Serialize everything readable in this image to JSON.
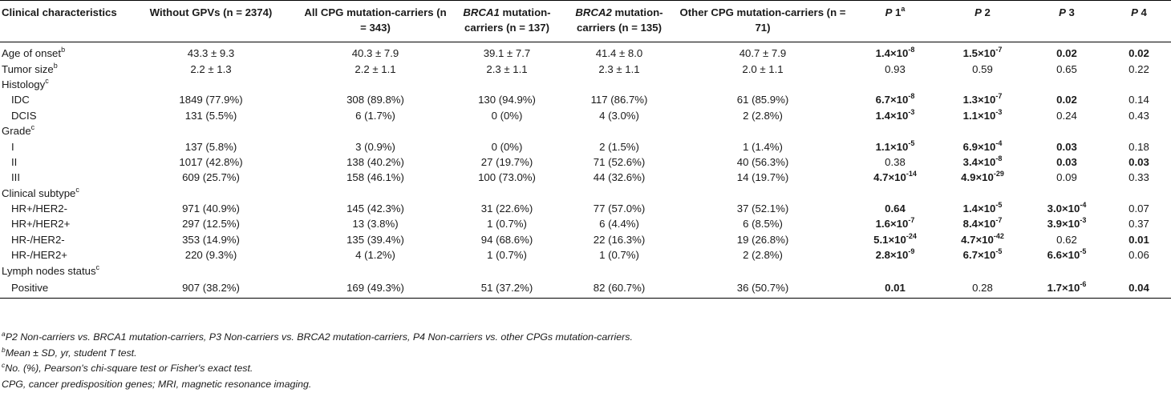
{
  "header": {
    "col0": "Clinical characteristics",
    "col1": "Without GPVs (n = 2374)",
    "col2": "All CPG mutation-carriers (n = 343)",
    "col3_gene": "BRCA1",
    "col3_rest": " mutation-carriers (n = 137)",
    "col4_gene": "BRCA2",
    "col4_rest": " mutation-carriers (n = 135)",
    "col5": "Other CPG mutation-carriers (n = 71)",
    "p": "P",
    "p1": " 1",
    "p1_sup": "a",
    "p2": " 2",
    "p3": " 3",
    "p4": " 4"
  },
  "rows": [
    {
      "label": "Age of onset",
      "sup": "b",
      "c1": "43.3 ± 9.3",
      "c2": "40.3 ± 7.9",
      "c3": "39.1 ± 7.7",
      "c4": "41.4 ± 8.0",
      "c5": "40.7 ± 7.9",
      "p1": "1.4×10",
      "p1e": "-8",
      "p2": "1.5×10",
      "p2e": "-7",
      "p3": "0.02",
      "p3e": "",
      "p4": "0.02",
      "p4e": ""
    },
    {
      "label": "Tumor size",
      "sup": "b",
      "c1": "2.2 ± 1.3",
      "c2": "2.2 ± 1.1",
      "c3": "2.3 ± 1.1",
      "c4": "2.3 ± 1.1",
      "c5": "2.0 ± 1.1",
      "p1": "0.93",
      "p1e": "",
      "p2": "0.59",
      "p2e": "",
      "p3": "0.65",
      "p3e": "",
      "p4": "0.22",
      "p4e": ""
    },
    {
      "label": "Histology",
      "sup": "c"
    },
    {
      "label": "IDC",
      "sub": true,
      "c1": "1849 (77.9%)",
      "c2": "308 (89.8%)",
      "c3": "130 (94.9%)",
      "c4": "117 (86.7%)",
      "c5": "61 (85.9%)",
      "p1": "6.7×10",
      "p1e": "-8",
      "p2": "1.3×10",
      "p2e": "-7",
      "p3": "0.02",
      "p3e": "",
      "p4": "0.14",
      "p4e": ""
    },
    {
      "label": "DCIS",
      "sub": true,
      "c1": "131 (5.5%)",
      "c2": "6 (1.7%)",
      "c3": "0 (0%)",
      "c4": "4 (3.0%)",
      "c5": "2 (2.8%)",
      "p1": "1.4×10",
      "p1e": "-3",
      "p2": "1.1×10",
      "p2e": "-3",
      "p3": "0.24",
      "p3e": "",
      "p4": "0.43",
      "p4e": ""
    },
    {
      "label": "Grade",
      "sup": "c"
    },
    {
      "label": "I",
      "sub": true,
      "c1": "137 (5.8%)",
      "c2": "3 (0.9%)",
      "c3": "0 (0%)",
      "c4": "2 (1.5%)",
      "c5": "1 (1.4%)",
      "p1": "1.1×10",
      "p1e": "-5",
      "p2": "6.9×10",
      "p2e": "-4",
      "p3": "0.03",
      "p3e": "",
      "p4": "0.18",
      "p4e": ""
    },
    {
      "label": "II",
      "sub": true,
      "c1": "1017 (42.8%)",
      "c2": "138 (40.2%)",
      "c3": "27 (19.7%)",
      "c4": "71 (52.6%)",
      "c5": "40 (56.3%)",
      "p1": "0.38",
      "p1e": "",
      "p2": "3.4×10",
      "p2e": "-8",
      "p3": "0.03",
      "p3e": "",
      "p4": "0.03",
      "p4e": ""
    },
    {
      "label": "III",
      "sub": true,
      "c1": "609 (25.7%)",
      "c2": "158 (46.1%)",
      "c3": "100 (73.0%)",
      "c4": "44 (32.6%)",
      "c5": "14 (19.7%)",
      "p1": "4.7×10",
      "p1e": "-14",
      "p2": "4.9×10",
      "p2e": "-29",
      "p3": "0.09",
      "p3e": "",
      "p4": "0.33",
      "p4e": ""
    },
    {
      "label": "Clinical subtype",
      "sup": "c"
    },
    {
      "label": "HR+/HER2-",
      "sub": true,
      "c1": "971 (40.9%)",
      "c2": "145 (42.3%)",
      "c3": "31 (22.6%)",
      "c4": "77 (57.0%)",
      "c5": "37 (52.1%)",
      "p1": "0.64",
      "p1e": "",
      "p2": "1.4×10",
      "p2e": "-5",
      "p3": "3.0×10",
      "p3e": "-4",
      "p4": "0.07",
      "p4e": ""
    },
    {
      "label": "HR+/HER2+",
      "sub": true,
      "c1": "297 (12.5%)",
      "c2": "13 (3.8%)",
      "c3": "1 (0.7%)",
      "c4": "6 (4.4%)",
      "c5": "6 (8.5%)",
      "p1": "1.6×10",
      "p1e": "-7",
      "p2": "8.4×10",
      "p2e": "-7",
      "p3": "3.9×10",
      "p3e": "-3",
      "p4": "0.37",
      "p4e": ""
    },
    {
      "label": "HR-/HER2-",
      "sub": true,
      "c1": "353 (14.9%)",
      "c2": "135 (39.4%)",
      "c3": "94 (68.6%)",
      "c4": "22 (16.3%)",
      "c5": "19 (26.8%)",
      "p1": "5.1×10",
      "p1e": "-24",
      "p2": "4.7×10",
      "p2e": "-42",
      "p3": "0.62",
      "p3e": "",
      "p4": "0.01",
      "p4e": ""
    },
    {
      "label": "HR-/HER2+",
      "sub": true,
      "c1": "220 (9.3%)",
      "c2": "4 (1.2%)",
      "c3": "1 (0.7%)",
      "c4": "1 (0.7%)",
      "c5": "2 (2.8%)",
      "p1": "2.8×10",
      "p1e": "-9",
      "p2": "6.7×10",
      "p2e": "-5",
      "p3": "6.6×10",
      "p3e": "-5",
      "p4": "0.06",
      "p4e": ""
    },
    {
      "label": "Lymph nodes status",
      "sup": "c"
    },
    {
      "label": "Positive",
      "sub": true,
      "c1": "907 (38.2%)",
      "c2": "169 (49.3%)",
      "c3": "51 (37.2%)",
      "c4": "82 (60.7%)",
      "c5": "36 (50.7%)",
      "p1": "0.01",
      "p1e": "",
      "p2": "0.28",
      "p2e": "",
      "p3": "1.7×10",
      "p3e": "-6",
      "p4": "0.04",
      "p4e": ""
    }
  ],
  "bold_cells": [
    [
      1,
      1,
      1,
      1
    ],
    [
      0,
      0,
      0,
      0
    ],
    [
      0,
      0,
      0,
      0
    ],
    [
      1,
      1,
      1,
      0
    ],
    [
      1,
      1,
      0,
      0
    ],
    [
      0,
      0,
      0,
      0
    ],
    [
      1,
      1,
      1,
      0
    ],
    [
      0,
      1,
      1,
      1
    ],
    [
      1,
      1,
      0,
      0
    ],
    [
      0,
      0,
      0,
      0
    ],
    [
      1,
      1,
      1,
      0
    ],
    [
      1,
      1,
      1,
      0
    ],
    [
      1,
      1,
      0,
      1
    ],
    [
      1,
      1,
      1,
      0
    ],
    [
      0,
      0,
      0,
      0
    ],
    [
      1,
      0,
      1,
      1
    ]
  ],
  "notes": [
    {
      "sup": "a",
      "text": "P2 Non-carriers vs. BRCA1 mutation-carriers, P3 Non-carriers vs. BRCA2 mutation-carriers, P4 Non-carriers vs. other CPGs mutation-carriers."
    },
    {
      "sup": "b",
      "text": "Mean ± SD, yr, student T test."
    },
    {
      "sup": "c",
      "text": "No. (%), Pearson's chi-square test or Fisher's exact test."
    },
    {
      "sup": "",
      "text": "CPG, cancer predisposition genes; MRI, magnetic resonance imaging."
    }
  ]
}
